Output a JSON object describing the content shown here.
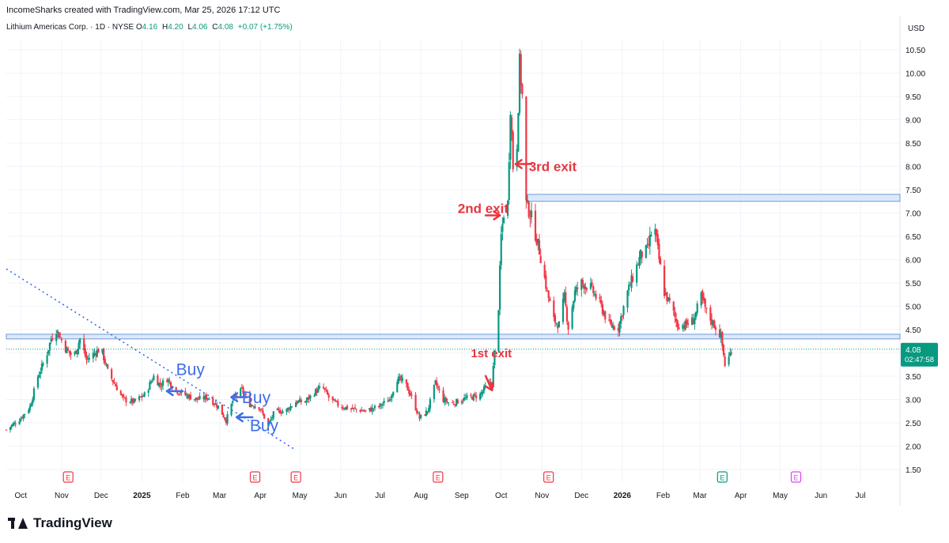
{
  "header": {
    "created_by": "IncomeSharks created with TradingView.com, Mar 25, 2026 17:12 UTC",
    "symbol": "Lithium Americas Corp. · 1D · NYSE",
    "open_label": "O",
    "open": "4.16",
    "high_label": "H",
    "high": "4.20",
    "low_label": "L",
    "low": "4.06",
    "close_label": "C",
    "close": "4.08",
    "change": "+0.07 (+1.75%)"
  },
  "currency": "USD",
  "price_label": {
    "price": "4.08",
    "countdown": "02:47:58"
  },
  "footer": {
    "brand": "TradingView"
  },
  "colors": {
    "up": "#089981",
    "down": "#f23645",
    "annotation_red": "#e8353e",
    "annotation_blue": "#3d6ee8",
    "zone_fill": "#dce8fa",
    "zone_line": "#6d9bd6",
    "trendline": "#2962ff"
  },
  "chart_data": {
    "type": "candlestick",
    "ylim": [
      1.3,
      10.9
    ],
    "y_ticks": [
      1.5,
      2.0,
      2.5,
      3.0,
      3.5,
      4.0,
      4.5,
      5.0,
      5.5,
      6.0,
      6.5,
      7.0,
      7.5,
      8.0,
      8.5,
      9.0,
      9.5,
      10.0,
      10.5
    ],
    "y_tick_labels": [
      "1.50",
      "2.00",
      "2.50",
      "3.00",
      "3.50",
      "4.00",
      "4.50",
      "5.00",
      "5.50",
      "6.00",
      "6.50",
      "7.00",
      "7.50",
      "8.00",
      "8.50",
      "9.00",
      "9.50",
      "10.00",
      "10.50"
    ],
    "x_ticks": [
      {
        "label": "Oct",
        "date": "2024-10-01",
        "bold": false
      },
      {
        "label": "Nov",
        "date": "2024-11-01",
        "bold": false
      },
      {
        "label": "Dec",
        "date": "2024-12-01",
        "bold": false
      },
      {
        "label": "2025",
        "date": "2025-01-01",
        "bold": true
      },
      {
        "label": "Feb",
        "date": "2025-02-01",
        "bold": false
      },
      {
        "label": "Mar",
        "date": "2025-03-01",
        "bold": false
      },
      {
        "label": "Apr",
        "date": "2025-04-01",
        "bold": false
      },
      {
        "label": "May",
        "date": "2025-05-01",
        "bold": false
      },
      {
        "label": "Jun",
        "date": "2025-06-01",
        "bold": false
      },
      {
        "label": "Jul",
        "date": "2025-07-01",
        "bold": false
      },
      {
        "label": "Aug",
        "date": "2025-08-01",
        "bold": false
      },
      {
        "label": "Sep",
        "date": "2025-09-01",
        "bold": false
      },
      {
        "label": "Oct",
        "date": "2025-10-01",
        "bold": false
      },
      {
        "label": "Nov",
        "date": "2025-11-01",
        "bold": false
      },
      {
        "label": "Dec",
        "date": "2025-12-01",
        "bold": false
      },
      {
        "label": "2026",
        "date": "2026-01-01",
        "bold": true
      },
      {
        "label": "Feb",
        "date": "2026-02-01",
        "bold": false
      },
      {
        "label": "Mar",
        "date": "2026-03-01",
        "bold": false
      },
      {
        "label": "Apr",
        "date": "2026-04-01",
        "bold": false
      },
      {
        "label": "May",
        "date": "2026-05-01",
        "bold": false
      },
      {
        "label": "Jun",
        "date": "2026-06-01",
        "bold": false
      },
      {
        "label": "Jul",
        "date": "2026-07-01",
        "bold": false
      }
    ],
    "path": [
      [
        "2024-09-20",
        2.35
      ],
      [
        "2024-10-01",
        2.6
      ],
      [
        "2024-10-08",
        2.85
      ],
      [
        "2024-10-14",
        3.5
      ],
      [
        "2024-10-20",
        3.9
      ],
      [
        "2024-10-24",
        4.3
      ],
      [
        "2024-10-28",
        4.5
      ],
      [
        "2024-11-04",
        4.1
      ],
      [
        "2024-11-10",
        3.9
      ],
      [
        "2024-11-15",
        4.3
      ],
      [
        "2024-11-20",
        3.85
      ],
      [
        "2024-11-26",
        4.0
      ],
      [
        "2024-12-01",
        4.1
      ],
      [
        "2024-12-06",
        3.6
      ],
      [
        "2024-12-12",
        3.3
      ],
      [
        "2024-12-18",
        3.0
      ],
      [
        "2024-12-26",
        2.95
      ],
      [
        "2025-01-03",
        3.1
      ],
      [
        "2025-01-10",
        3.5
      ],
      [
        "2025-01-15",
        3.3
      ],
      [
        "2025-01-20",
        3.45
      ],
      [
        "2025-01-27",
        3.2
      ],
      [
        "2025-02-03",
        3.1
      ],
      [
        "2025-02-12",
        3.0
      ],
      [
        "2025-02-20",
        3.05
      ],
      [
        "2025-02-28",
        2.85
      ],
      [
        "2025-03-06",
        2.55
      ],
      [
        "2025-03-12",
        3.05
      ],
      [
        "2025-03-18",
        3.2
      ],
      [
        "2025-03-24",
        2.9
      ],
      [
        "2025-03-31",
        2.85
      ],
      [
        "2025-04-07",
        2.45
      ],
      [
        "2025-04-12",
        2.75
      ],
      [
        "2025-04-20",
        2.75
      ],
      [
        "2025-04-28",
        2.95
      ],
      [
        "2025-05-05",
        2.95
      ],
      [
        "2025-05-12",
        3.15
      ],
      [
        "2025-05-18",
        3.28
      ],
      [
        "2025-05-24",
        3.0
      ],
      [
        "2025-06-01",
        2.85
      ],
      [
        "2025-06-10",
        2.8
      ],
      [
        "2025-06-20",
        2.75
      ],
      [
        "2025-06-30",
        2.85
      ],
      [
        "2025-07-08",
        3.0
      ],
      [
        "2025-07-14",
        3.45
      ],
      [
        "2025-07-20",
        3.35
      ],
      [
        "2025-07-25",
        3.05
      ],
      [
        "2025-07-31",
        2.6
      ],
      [
        "2025-08-06",
        2.75
      ],
      [
        "2025-08-12",
        3.35
      ],
      [
        "2025-08-18",
        3.0
      ],
      [
        "2025-08-24",
        2.9
      ],
      [
        "2025-09-01",
        3.0
      ],
      [
        "2025-09-08",
        3.05
      ],
      [
        "2025-09-15",
        3.1
      ],
      [
        "2025-09-20",
        3.3
      ],
      [
        "2025-09-24",
        3.35
      ],
      [
        "2025-09-29",
        5.0
      ],
      [
        "2025-10-01",
        6.5
      ],
      [
        "2025-10-03",
        7.0
      ],
      [
        "2025-10-06",
        7.2
      ],
      [
        "2025-10-08",
        9.3
      ],
      [
        "2025-10-10",
        8.0
      ],
      [
        "2025-10-13",
        8.5
      ],
      [
        "2025-10-15",
        10.2
      ],
      [
        "2025-10-17",
        9.5
      ],
      [
        "2025-10-20",
        7.2
      ],
      [
        "2025-10-24",
        6.9
      ],
      [
        "2025-10-30",
        6.2
      ],
      [
        "2025-11-05",
        5.3
      ],
      [
        "2025-11-10",
        4.7
      ],
      [
        "2025-11-14",
        4.6
      ],
      [
        "2025-11-18",
        5.2
      ],
      [
        "2025-11-21",
        4.55
      ],
      [
        "2025-11-26",
        5.3
      ],
      [
        "2025-12-01",
        5.5
      ],
      [
        "2025-12-08",
        5.4
      ],
      [
        "2025-12-15",
        5.05
      ],
      [
        "2025-12-22",
        4.6
      ],
      [
        "2025-12-29",
        4.55
      ],
      [
        "2026-01-05",
        5.3
      ],
      [
        "2026-01-10",
        5.7
      ],
      [
        "2026-01-15",
        6.1
      ],
      [
        "2026-01-20",
        6.2
      ],
      [
        "2026-01-25",
        6.8
      ],
      [
        "2026-01-29",
        6.0
      ],
      [
        "2026-02-02",
        5.3
      ],
      [
        "2026-02-07",
        5.0
      ],
      [
        "2026-02-12",
        4.6
      ],
      [
        "2026-02-18",
        4.6
      ],
      [
        "2026-02-24",
        4.7
      ],
      [
        "2026-03-02",
        5.2
      ],
      [
        "2026-03-07",
        4.8
      ],
      [
        "2026-03-12",
        4.6
      ],
      [
        "2026-03-17",
        4.35
      ],
      [
        "2026-03-20",
        3.75
      ],
      [
        "2026-03-23",
        3.9
      ],
      [
        "2026-03-25",
        4.08
      ]
    ],
    "zones": [
      {
        "x_start": "2024-09-20",
        "x_end": "2026-07-31",
        "y_low": 4.3,
        "y_high": 4.4
      },
      {
        "x_start": "2025-10-20",
        "x_end": "2026-07-31",
        "y_low": 7.25,
        "y_high": 7.4
      }
    ],
    "trendline": {
      "x1": "2024-09-20",
      "y1": 5.8,
      "x2": "2025-04-26",
      "y2": 1.95
    },
    "last_price": 4.08,
    "annotations": [
      {
        "text": "Buy",
        "color": "blue",
        "x": "2025-01-27",
        "y": 3.65,
        "arrow_to": {
          "x": "2025-01-20",
          "y": 3.18
        },
        "arrow": "left"
      },
      {
        "text": "Buy",
        "color": "blue",
        "x": "2025-03-18",
        "y": 3.05,
        "arrow_to": {
          "x": "2025-03-10",
          "y": 3.05
        },
        "arrow": "left"
      },
      {
        "text": "Buy",
        "color": "blue",
        "x": "2025-03-24",
        "y": 2.45,
        "arrow_to": {
          "x": "2025-03-14",
          "y": 2.62
        },
        "arrow": "left"
      },
      {
        "text": "1st exit",
        "color": "red",
        "x": "2025-09-08",
        "y": 4.0,
        "arrow_to": {
          "x": "2025-09-24",
          "y": 3.2
        },
        "arrow": "down"
      },
      {
        "text": "2nd exit",
        "color": "red",
        "x": "2025-08-29",
        "y": 7.1,
        "arrow_to": {
          "x": "2025-09-30",
          "y": 6.95
        },
        "arrow": "right"
      },
      {
        "text": "3rd exit",
        "color": "red",
        "x": "2025-10-22",
        "y": 8.0,
        "arrow_to": {
          "x": "2025-10-12",
          "y": 8.05
        },
        "arrow": "left"
      }
    ],
    "earnings": [
      {
        "date": "2024-11-06",
        "label": "E",
        "style": "red"
      },
      {
        "date": "2025-03-28",
        "label": "E",
        "style": "red"
      },
      {
        "date": "2025-04-28",
        "label": "E",
        "style": "red"
      },
      {
        "date": "2025-08-14",
        "label": "E",
        "style": "red"
      },
      {
        "date": "2025-11-06",
        "label": "E",
        "style": "red"
      },
      {
        "date": "2026-03-18",
        "label": "E",
        "style": "teal"
      },
      {
        "date": "2026-05-13",
        "label": "E",
        "style": "purple"
      }
    ]
  }
}
